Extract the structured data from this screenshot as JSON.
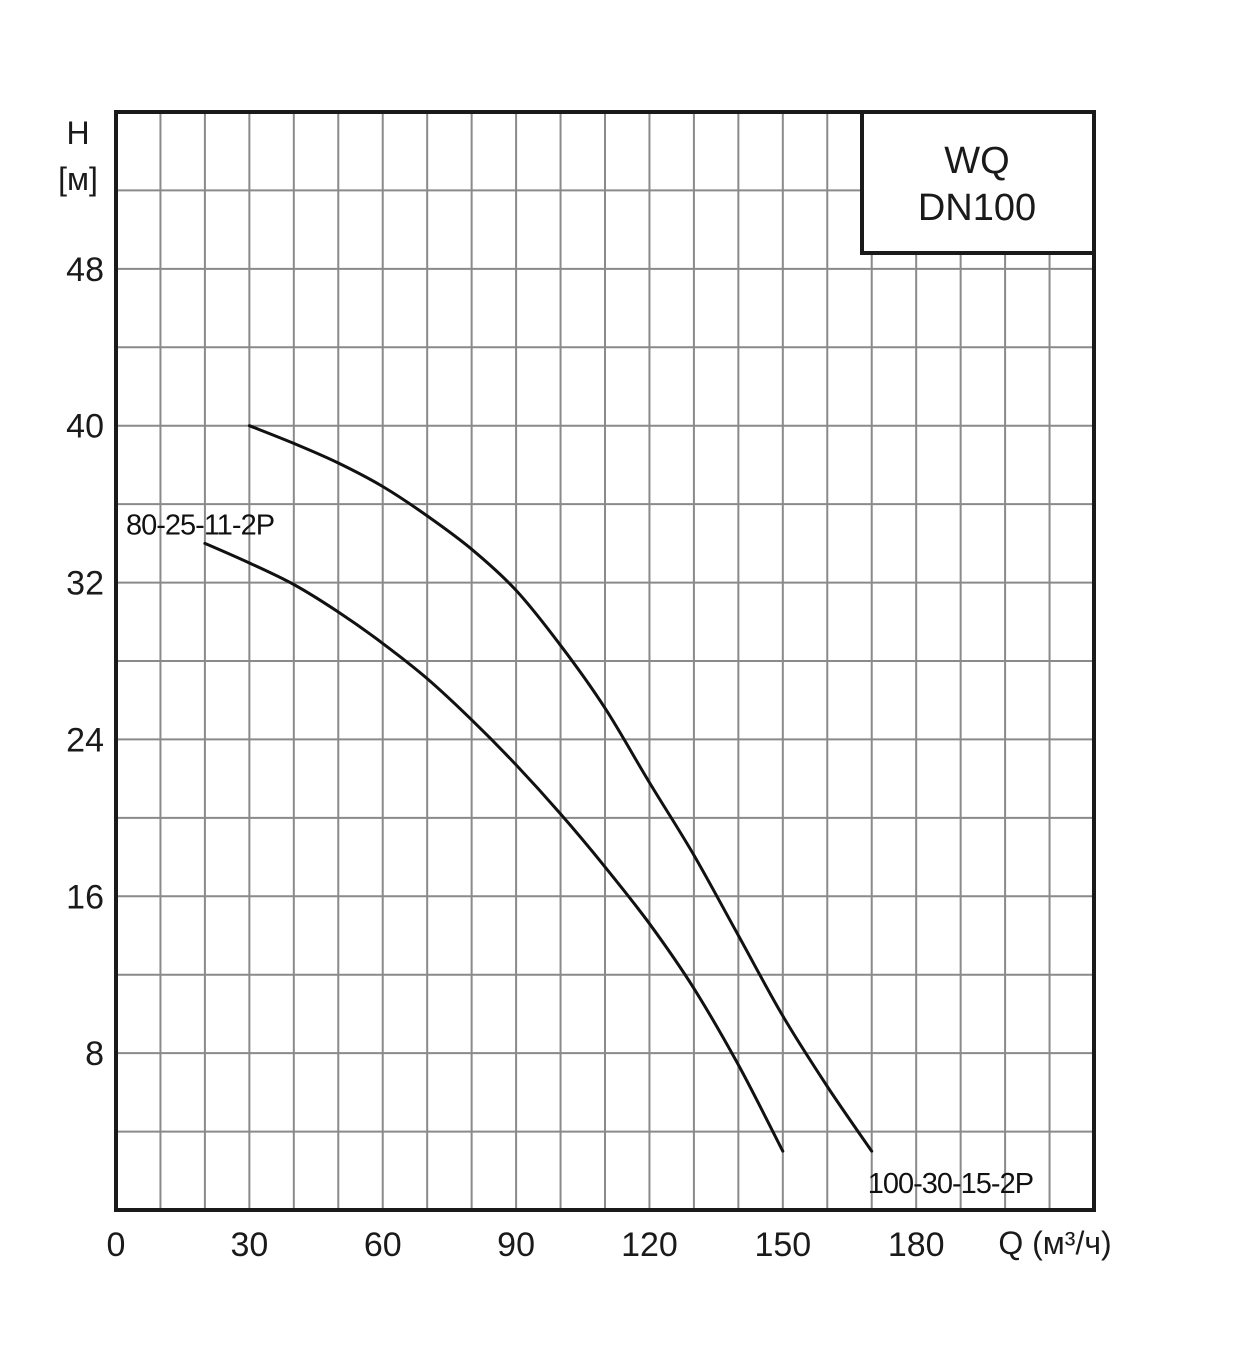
{
  "chart_data": {
    "type": "line",
    "title_box": {
      "line1": "WQ",
      "line2": "DN100"
    },
    "ylabel": {
      "line1": "H",
      "line2": "[м]"
    },
    "xlabel": "Q (м³/ч)",
    "xlim": [
      0,
      220
    ],
    "ylim": [
      0,
      56
    ],
    "x_minor_step": 10,
    "y_minor_step": 4,
    "x_ticks": [
      0,
      30,
      60,
      90,
      120,
      150,
      180
    ],
    "y_ticks": [
      8,
      16,
      24,
      32,
      40,
      48
    ],
    "grid": true,
    "series": [
      {
        "name": "80-25-11-2P",
        "x": [
          20,
          30,
          40,
          50,
          60,
          70,
          80,
          90,
          100,
          110,
          120,
          130,
          140,
          150
        ],
        "y": [
          34,
          33,
          31.9,
          30.5,
          28.9,
          27.1,
          25,
          22.7,
          20.2,
          17.5,
          14.6,
          11.3,
          7.4,
          3
        ]
      },
      {
        "name": "100-30-15-2P",
        "x": [
          30,
          40,
          50,
          60,
          70,
          80,
          90,
          100,
          110,
          120,
          130,
          140,
          150,
          160,
          170
        ],
        "y": [
          40,
          39.1,
          38.1,
          36.9,
          35.4,
          33.7,
          31.6,
          28.8,
          25.6,
          21.8,
          18.1,
          14,
          9.9,
          6.3,
          3
        ]
      }
    ]
  }
}
